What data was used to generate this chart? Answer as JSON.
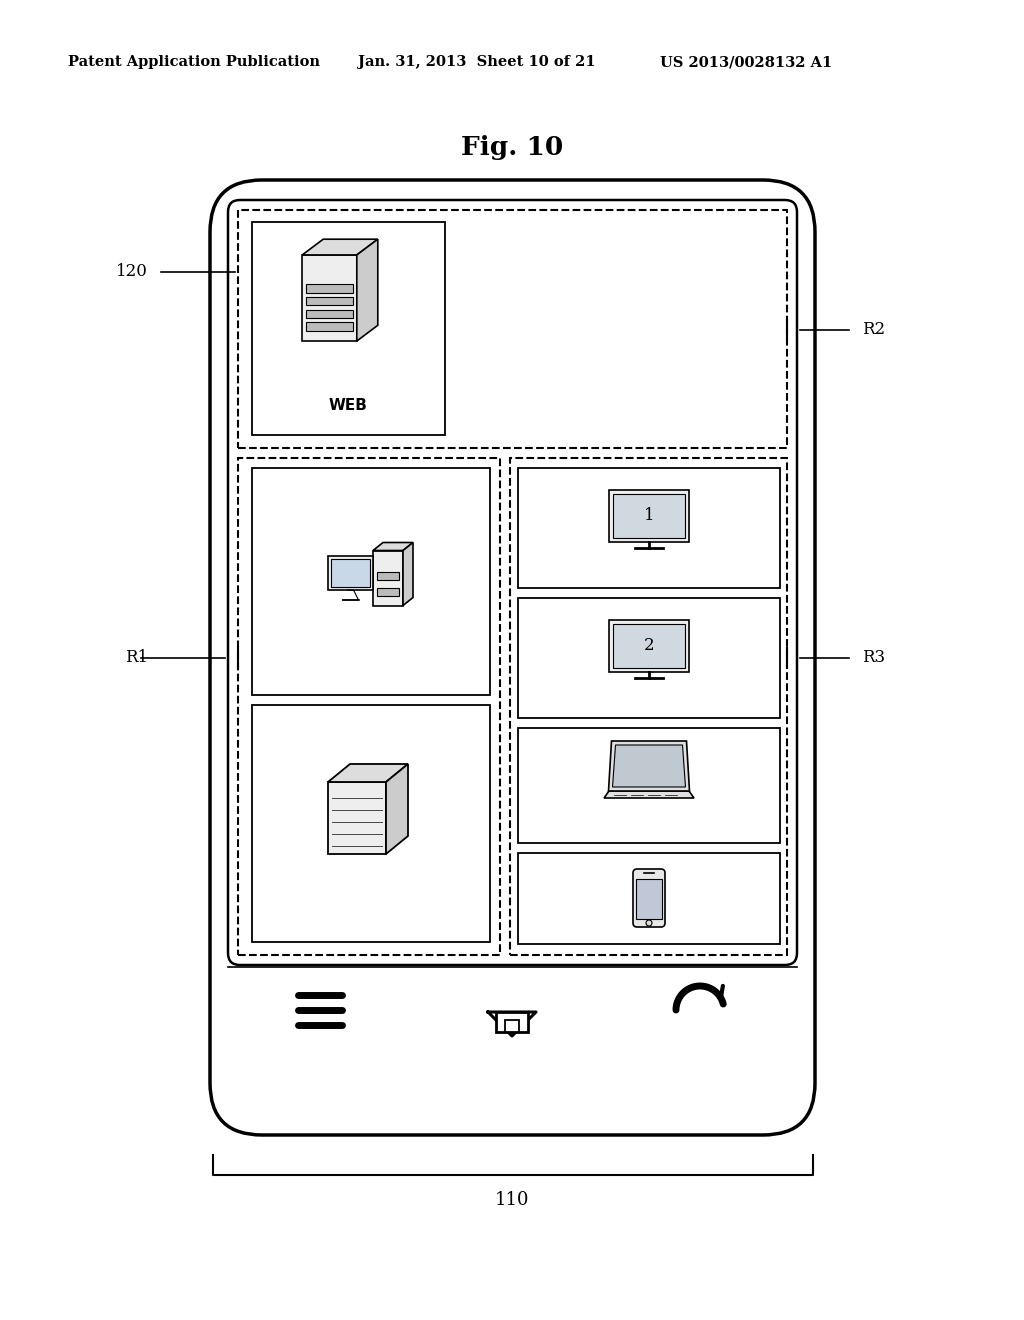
{
  "title": "Fig. 10",
  "header_left": "Patent Application Publication",
  "header_mid": "Jan. 31, 2013  Sheet 10 of 21",
  "header_right": "US 2013/0028132 A1",
  "label_110": "110",
  "label_120": "120",
  "label_R1": "R1",
  "label_R2": "R2",
  "label_R3": "R3",
  "bg_color": "#ffffff",
  "line_color": "#000000"
}
